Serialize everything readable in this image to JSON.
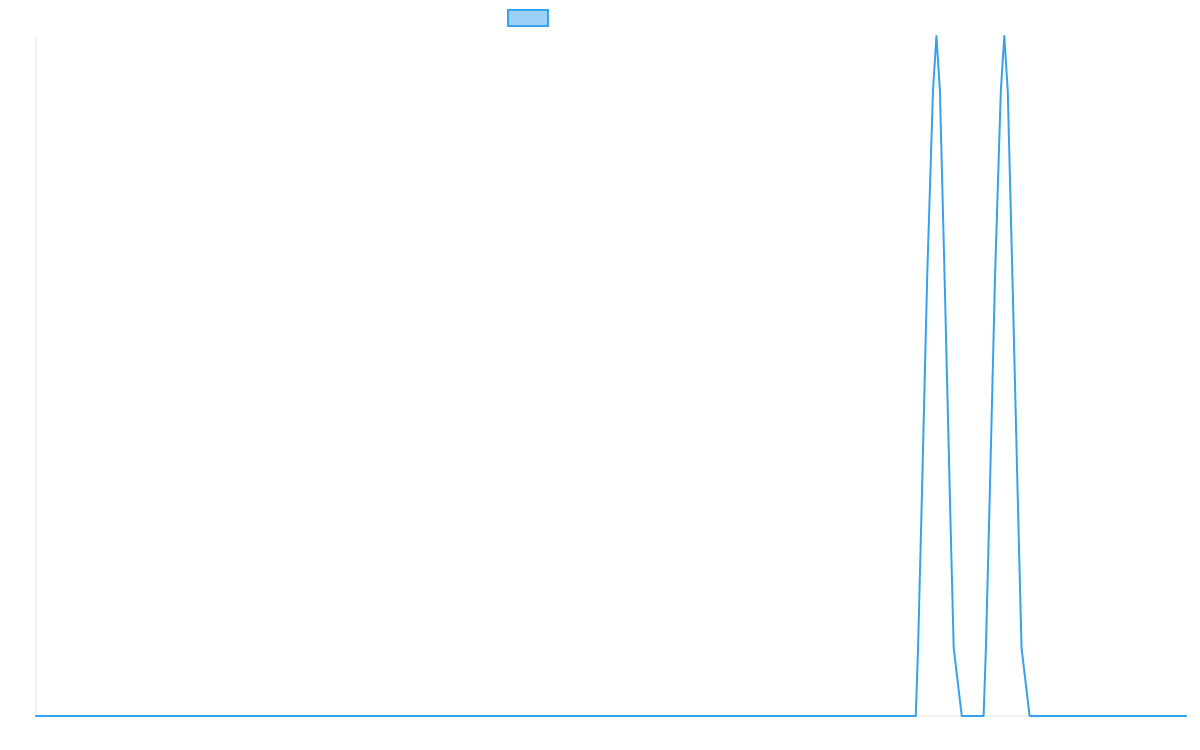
{
  "chart_data": {
    "type": "line",
    "title": "",
    "xlabel": "",
    "ylabel": "",
    "grid": false,
    "legend": {
      "placement": "top-center",
      "entries": [
        {
          "label": "",
          "color": "#36a2eb",
          "fill": "#9ad0f5"
        }
      ]
    },
    "xlim": [
      0,
      1000
    ],
    "ylim": [
      0,
      1
    ],
    "series": [
      {
        "name": "",
        "color": "#36a2eb",
        "points": [
          [
            0,
            0
          ],
          [
            765,
            0
          ],
          [
            767,
            0.1
          ],
          [
            770,
            0.3
          ],
          [
            775,
            0.65
          ],
          [
            780,
            0.92
          ],
          [
            783,
            1.0
          ],
          [
            786,
            0.92
          ],
          [
            790,
            0.65
          ],
          [
            795,
            0.3
          ],
          [
            798,
            0.1
          ],
          [
            805,
            0
          ],
          [
            824,
            0
          ],
          [
            826,
            0.1
          ],
          [
            829,
            0.3
          ],
          [
            834,
            0.65
          ],
          [
            839,
            0.92
          ],
          [
            842,
            1.0
          ],
          [
            845,
            0.92
          ],
          [
            849,
            0.65
          ],
          [
            854,
            0.3
          ],
          [
            857,
            0.1
          ],
          [
            864,
            0
          ],
          [
            1000,
            0
          ]
        ]
      }
    ]
  }
}
